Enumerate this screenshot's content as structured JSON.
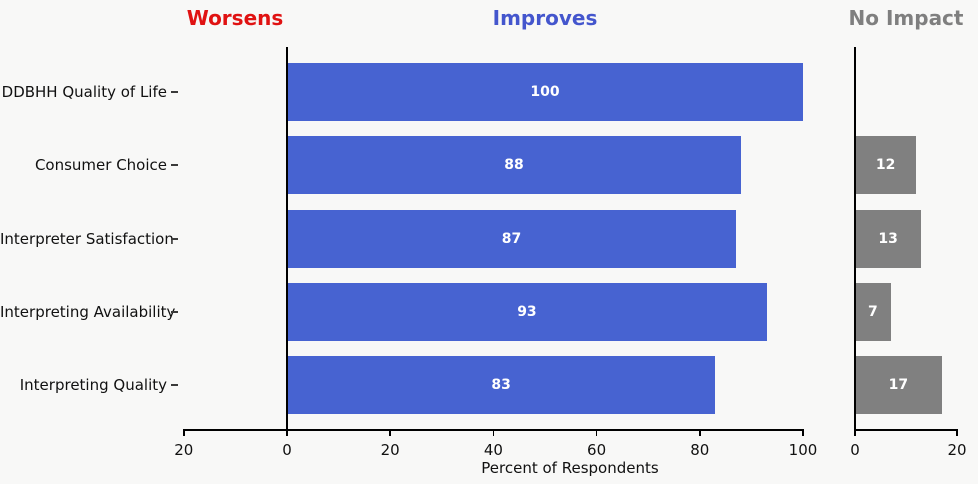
{
  "figure": {
    "background": "#f8f8f7",
    "panel_titles": {
      "worsens": "Worsens",
      "improves": "Improves",
      "no_impact": "No Impact"
    },
    "panel_title_colors": {
      "worsens": "#e01212",
      "improves": "#4456cd",
      "no_impact": "#7f7f7f"
    }
  },
  "chart_data": {
    "type": "bar",
    "orientation": "horizontal",
    "title": "",
    "xlabel": "Percent of Respondents",
    "categories": [
      "DDBHH Quality of Life",
      "Consumer Choice",
      "Interpreter Satisfaction",
      "Interpreting Availability",
      "Interpreting Quality"
    ],
    "series": [
      {
        "name": "Worsens",
        "color": "#e01212",
        "panel": "main",
        "values": [
          null,
          null,
          null,
          null,
          null
        ]
      },
      {
        "name": "Improves",
        "color": "#4763d1",
        "panel": "main",
        "values": [
          100,
          88,
          87,
          93,
          83
        ]
      },
      {
        "name": "No Impact",
        "color": "#808080",
        "panel": "right",
        "values": [
          null,
          12,
          13,
          7,
          17
        ]
      }
    ],
    "bar_label_color": "#ffffff",
    "axes": {
      "main": {
        "xlim": [
          -20,
          100
        ],
        "tick_values": [
          -20,
          0,
          20,
          40,
          60,
          80,
          100
        ],
        "tick_labels": [
          "20",
          "0",
          "20",
          "40",
          "60",
          "80",
          "100"
        ]
      },
      "right": {
        "xlim": [
          0,
          20
        ],
        "tick_values": [
          0,
          20
        ],
        "tick_labels": [
          "0",
          "20"
        ]
      }
    },
    "grid": false,
    "legend": false
  }
}
